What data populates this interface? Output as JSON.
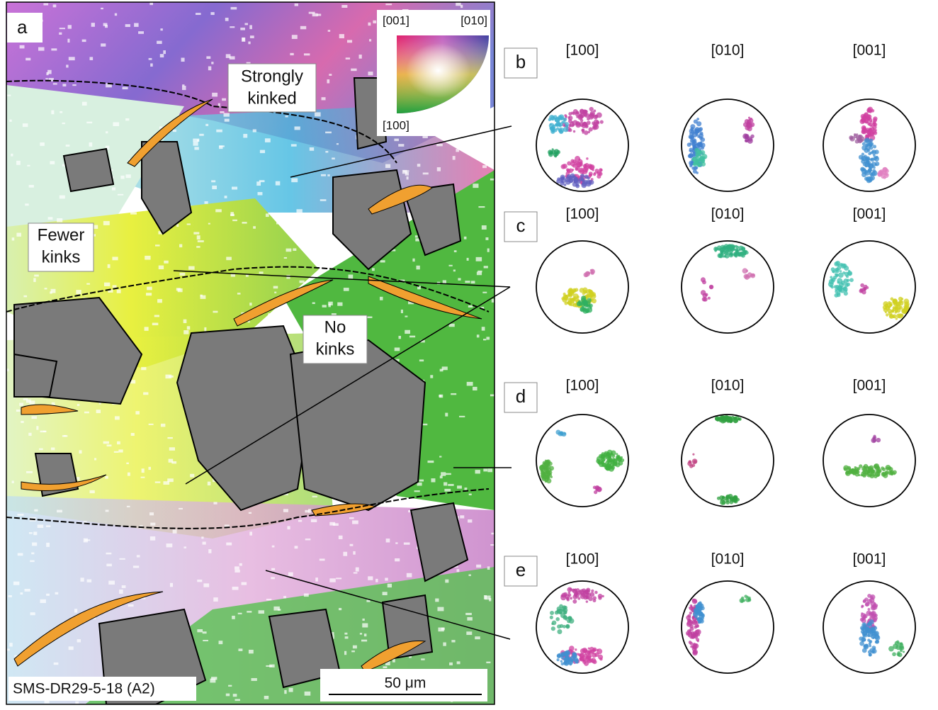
{
  "panel_a": {
    "label": "a",
    "color_key": {
      "top_left": "[001]",
      "top_right": "[010]",
      "bottom": "[100]"
    },
    "annotations": [
      {
        "lines": [
          "Strongly",
          "kinked"
        ]
      },
      {
        "lines": [
          "Fewer",
          "kinks"
        ]
      },
      {
        "lines": [
          "No",
          "kinks"
        ]
      }
    ],
    "sample": "SMS-DR29-5-18 (A2)",
    "scale_bar": "50 μm"
  },
  "pole_figures": {
    "columns": [
      "[100]",
      "[010]",
      "[001]"
    ],
    "rows": [
      {
        "label": "b"
      },
      {
        "label": "c"
      },
      {
        "label": "d"
      },
      {
        "label": "e"
      }
    ]
  }
}
